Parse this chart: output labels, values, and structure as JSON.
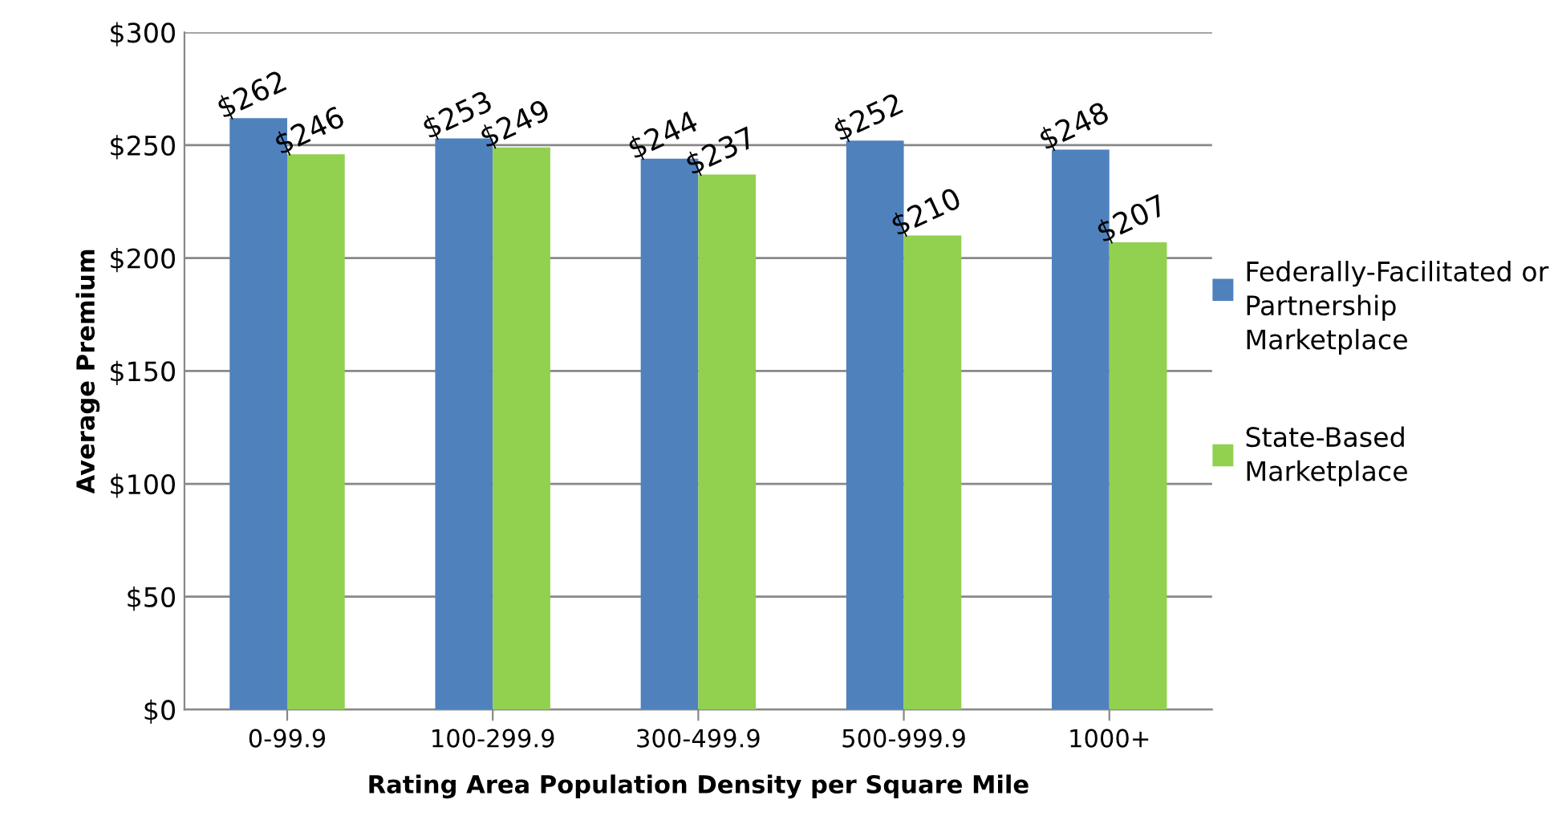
{
  "chart_data": {
    "type": "bar",
    "xlabel": "Rating Area Population Density per Square Mile",
    "ylabel": "Average Premium",
    "categories": [
      "0-99.9",
      "100-299.9",
      "300-499.9",
      "500-999.9",
      "1000+"
    ],
    "series": [
      {
        "name": "Federally-Facilitated or Partnership Marketplace",
        "color": "#4f81bd",
        "values": [
          262,
          253,
          244,
          252,
          248
        ],
        "value_labels": [
          "$262",
          "$253",
          "$244",
          "$252",
          "$248"
        ]
      },
      {
        "name": "State-Based Marketplace",
        "color": "#92d050",
        "values": [
          246,
          249,
          237,
          210,
          207
        ],
        "value_labels": [
          "$246",
          "$249",
          "$237",
          "$210",
          "$207"
        ]
      }
    ],
    "ylim": [
      0,
      300
    ],
    "yticks": [
      {
        "value": 0,
        "label": "$0"
      },
      {
        "value": 50,
        "label": "$50"
      },
      {
        "value": 100,
        "label": "$100"
      },
      {
        "value": 150,
        "label": "$150"
      },
      {
        "value": 200,
        "label": "$200"
      },
      {
        "value": 250,
        "label": "$250"
      },
      {
        "value": 300,
        "label": "$300"
      }
    ],
    "grid": "y",
    "legend": "right"
  }
}
